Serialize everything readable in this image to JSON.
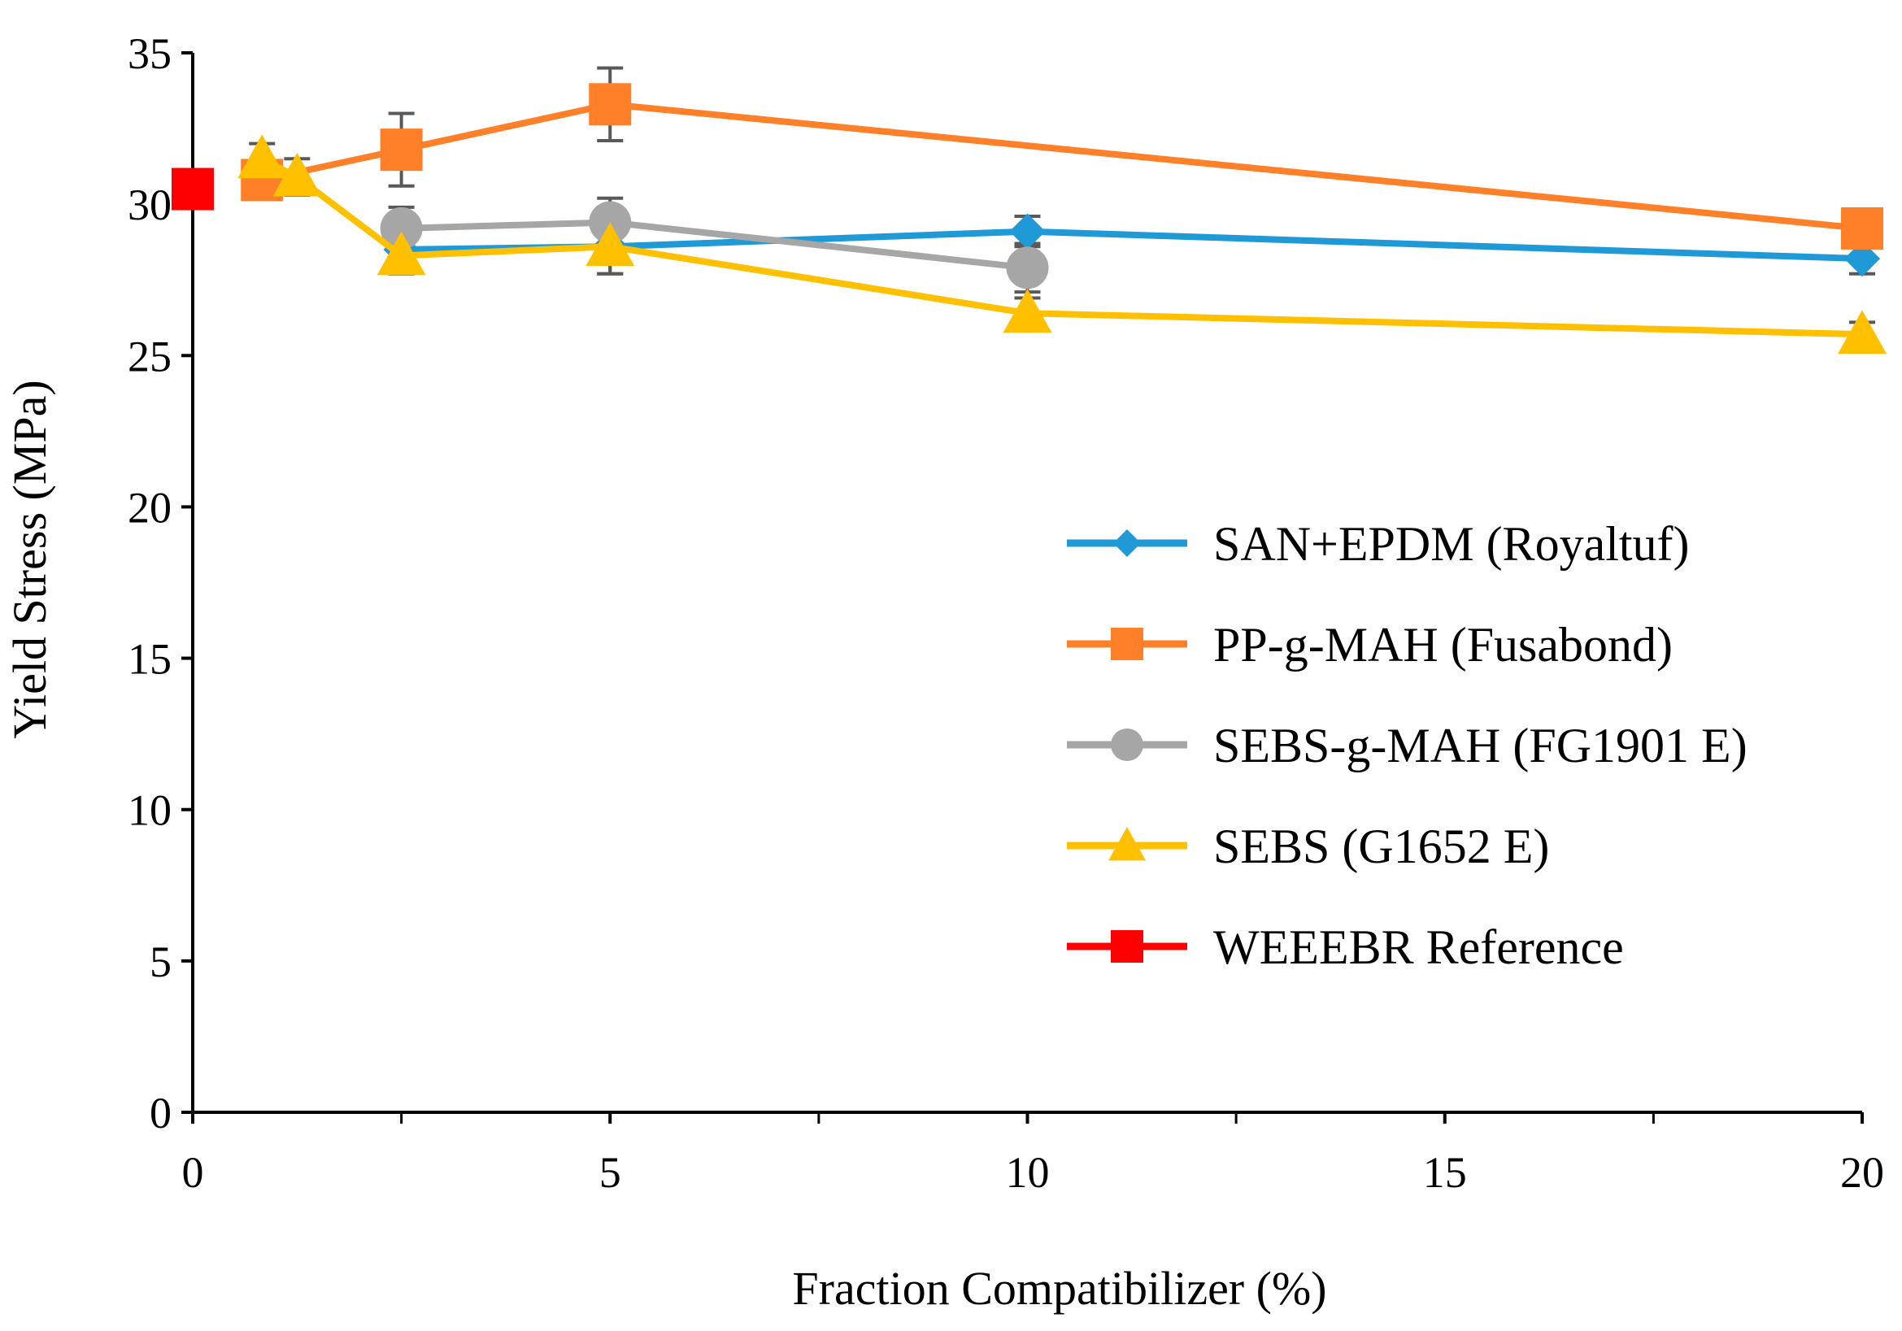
{
  "chart_data": {
    "type": "line",
    "title": "",
    "xlabel": "Fraction Compatibilizer (%)",
    "ylabel": "Yield Stress (MPa)",
    "xlim": [
      0,
      20
    ],
    "ylim": [
      0,
      35
    ],
    "xticks": [
      0,
      5,
      10,
      15,
      20
    ],
    "xticks_minor": [
      2.5,
      7.5,
      12.5,
      17.5
    ],
    "yticks": [
      0,
      5,
      10,
      15,
      20,
      25,
      30,
      35
    ],
    "grid": false,
    "legend_position": "right-center",
    "series": [
      {
        "name": "SAN+EPDM (Royaltuf)",
        "color": "#1f9ad6",
        "marker": "diamond",
        "x": [
          2.5,
          5,
          10,
          20
        ],
        "y": [
          28.5,
          28.6,
          29.1,
          28.2
        ],
        "err": [
          0.8,
          0.9,
          0.5,
          0.5
        ]
      },
      {
        "name": "PP-g-MAH (Fusabond)",
        "color": "#ff8029",
        "marker": "square",
        "x": [
          0.83,
          2.5,
          5,
          20
        ],
        "y": [
          30.8,
          31.8,
          33.3,
          29.2
        ],
        "err": [
          0.6,
          1.2,
          1.2,
          0.4
        ]
      },
      {
        "name": "SEBS-g-MAH (FG1901 E)",
        "color": "#a6a6a6",
        "marker": "circle",
        "x": [
          2.5,
          5,
          10
        ],
        "y": [
          29.2,
          29.4,
          27.9
        ],
        "err": [
          0.7,
          0.8,
          0.8
        ]
      },
      {
        "name": "SEBS (G1652 E)",
        "color": "#ffc000",
        "marker": "triangle",
        "x": [
          0.83,
          1.25,
          2.5,
          5,
          10,
          20
        ],
        "y": [
          31.5,
          30.9,
          28.3,
          28.6,
          26.4,
          25.7
        ],
        "err": [
          0.5,
          0.6,
          0.6,
          0.9,
          0.5,
          0.4
        ]
      },
      {
        "name": "WEEEBR Reference",
        "color": "#ff0000",
        "marker": "square",
        "x": [
          0
        ],
        "y": [
          30.5
        ],
        "err": [
          0
        ]
      }
    ]
  }
}
